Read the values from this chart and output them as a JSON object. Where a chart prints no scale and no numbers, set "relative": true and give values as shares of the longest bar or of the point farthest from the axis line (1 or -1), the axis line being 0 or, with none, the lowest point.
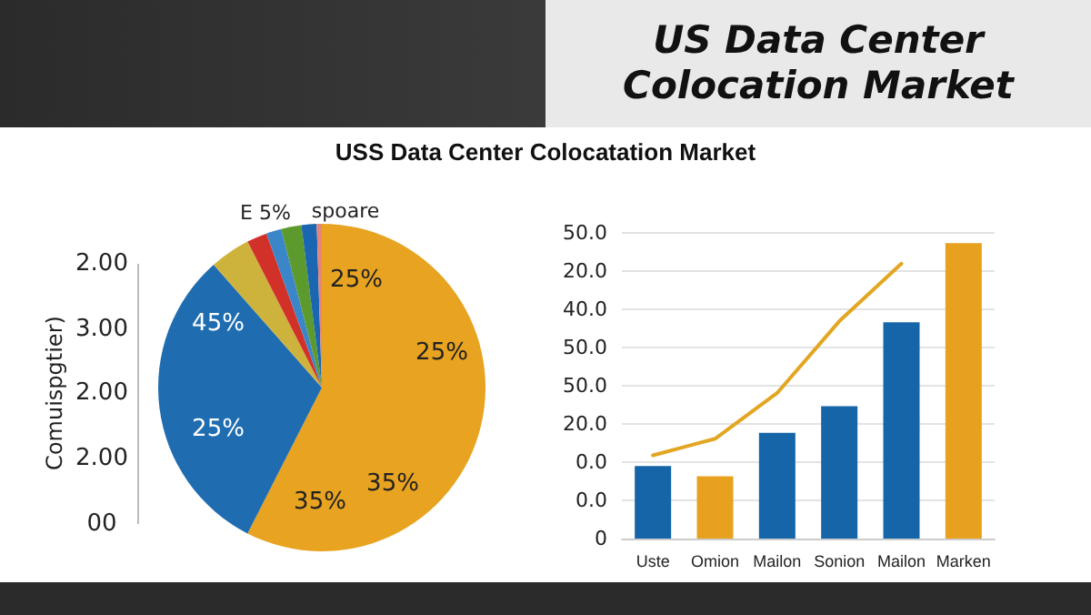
{
  "chart_data": [
    {
      "type": "other",
      "title": "US Data Center Colocation Market",
      "subtitle": "USS Data Center Colocatation Market"
    },
    {
      "type": "pie",
      "ylabel": "Comuispgtier)",
      "categories": [
        null,
        null,
        null,
        null,
        null,
        null,
        null,
        null
      ],
      "values": [
        57.5,
        31,
        4,
        2,
        1.5,
        2,
        1.5,
        0.5
      ],
      "colors": [
        "#e8a321",
        "#1f6db0",
        "#cdb23c",
        "#d2312a",
        "#3a86c8",
        "#5c9a2e",
        "#1a66b0",
        "#e8857a"
      ],
      "annotations": [
        "E 5%",
        "spoare",
        "25%",
        "25%",
        "45%",
        "25%",
        "35%",
        "35%",
        "2.00",
        "3.00",
        "2.00",
        "2.00",
        "00"
      ]
    },
    {
      "type": "bar",
      "relative": true,
      "categories": [
        "Uste",
        "Omion",
        "Mailon",
        "Sonion",
        "Mailon",
        "Marken"
      ],
      "series": [
        {
          "type": "bar",
          "colors": [
            "#1565a8",
            "#e8a11f",
            "#1565a8",
            "#1565a8",
            "#1565a8",
            "#e8a11f"
          ],
          "values": [
            0.246,
            0.211,
            0.358,
            0.448,
            0.732,
            1
          ]
        },
        {
          "type": "line",
          "color": "#e3a623",
          "values": [
            0.282,
            0.338,
            0.493,
            0.736,
            0.931,
            null
          ]
        }
      ],
      "annotations": [
        "50.0",
        "20.0",
        "40.0",
        "50.0",
        "50.0",
        "20.0",
        "0.0",
        "0.0",
        "0"
      ],
      "grid": "y",
      "marker": "none",
      "line_style": "solid"
    }
  ]
}
